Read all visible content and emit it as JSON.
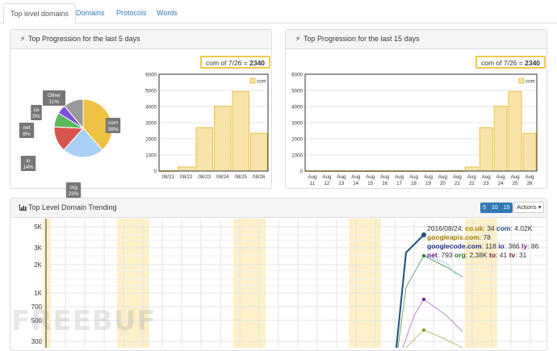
{
  "tabs": [
    {
      "label": "Top level domains",
      "active": true
    },
    {
      "label": "Domains",
      "active": false
    },
    {
      "label": "Protocols",
      "active": false
    },
    {
      "label": "Words",
      "active": false
    }
  ],
  "panel_5d": {
    "title": "Top Progression for the last 5 days",
    "value_label": "com of 7/26 = ",
    "value": "2340"
  },
  "panel_15d": {
    "title": "Top Progression for the last 15 days",
    "value_label": "com of 7/26 = ",
    "value": "2340"
  },
  "trending": {
    "title": "Top Level Domain Trending",
    "range_buttons": [
      "5",
      "10",
      "15"
    ],
    "actions_label": "Actions",
    "tooltip_lines": [
      [
        {
          "t": "2016/08/24: ",
          "b": false
        },
        {
          "t": "co.uk",
          "b": true,
          "c": "#a67c00"
        },
        {
          "t": ": 34 ",
          "b": false
        },
        {
          "t": "com",
          "b": true,
          "c": "#1f4e79"
        },
        {
          "t": ": 4.02K",
          "b": false
        }
      ],
      [
        {
          "t": "googleapis.com",
          "b": true,
          "c": "#a67c00"
        },
        {
          "t": ": 78",
          "b": false
        }
      ],
      [
        {
          "t": "googlecode.com",
          "b": true,
          "c": "#1f2f8a"
        },
        {
          "t": ": 118 ",
          "b": false
        },
        {
          "t": "io",
          "b": true,
          "c": "#1f2f8a"
        },
        {
          "t": ": 366 ",
          "b": false
        },
        {
          "t": "ly",
          "b": true,
          "c": "#7a1f7a"
        },
        {
          "t": ": 86",
          "b": false
        }
      ],
      [
        {
          "t": "net",
          "b": true,
          "c": "#6a1f8a"
        },
        {
          "t": ": 793 ",
          "b": false
        },
        {
          "t": "org",
          "b": true,
          "c": "#2b7a2b"
        },
        {
          "t": ": 2.38K ",
          "b": false
        },
        {
          "t": "to",
          "b": true,
          "c": "#7a1f1f"
        },
        {
          "t": ": 41 ",
          "b": false
        },
        {
          "t": "tv",
          "b": true,
          "c": "#7a1f1f"
        },
        {
          "t": ": 31",
          "b": false
        }
      ]
    ],
    "y_ticks": [
      "5K",
      "3K",
      "2K",
      "1K",
      "700",
      "500",
      "300"
    ]
  },
  "chart_data": [
    {
      "type": "pie",
      "labels": [
        "com",
        "org",
        "io",
        "net",
        "co",
        "Other"
      ],
      "values": [
        38,
        23,
        14,
        8,
        5,
        11
      ],
      "display": [
        "com\n38%",
        "org\n23%",
        "io\n14%",
        "net\n8%",
        "co\n5%",
        "Other\n11%"
      ],
      "colors": [
        "#f0c243",
        "#a9d1f5",
        "#d9534f",
        "#5cb85c",
        "#7b4fd6",
        "#999999"
      ]
    },
    {
      "type": "bar",
      "categories": [
        "08/21",
        "08/22",
        "08/23",
        "08/24",
        "08/25",
        "08/26"
      ],
      "values": [
        20,
        250,
        2700,
        4020,
        4920,
        2340
      ],
      "ylim": [
        0,
        6000
      ],
      "yticks": [
        0,
        1000,
        2000,
        3000,
        4000,
        5000,
        6000
      ],
      "legend": "com"
    },
    {
      "type": "bar",
      "categories": [
        "Aug 11",
        "Aug 12",
        "Aug 13",
        "Aug 14",
        "Aug 15",
        "Aug 16",
        "Aug 17",
        "Aug 18",
        "Aug 19",
        "Aug 20",
        "Aug 21",
        "Aug 22",
        "Aug 23",
        "Aug 24",
        "Aug 25",
        "Aug 26"
      ],
      "values": [
        10,
        10,
        10,
        10,
        10,
        10,
        10,
        10,
        10,
        10,
        20,
        250,
        2700,
        4020,
        4920,
        2340
      ],
      "ylim": [
        0,
        6000
      ],
      "yticks": [
        0,
        1000,
        2000,
        3000,
        4000,
        5000,
        6000
      ],
      "legend": "com"
    }
  ],
  "watermark": "FREEBUF"
}
